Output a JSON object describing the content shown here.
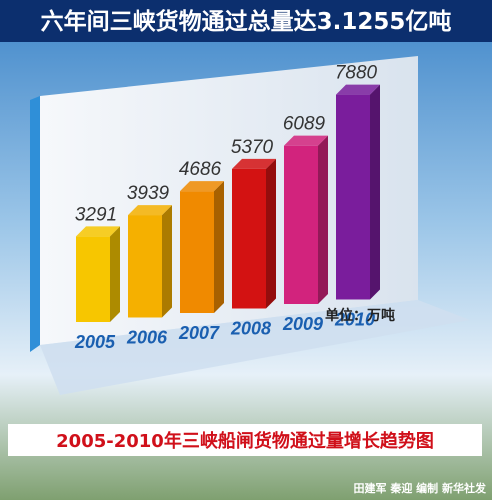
{
  "chart_data": {
    "type": "bar3d",
    "title": "六年间三峡货物通过总量达3.1255亿吨",
    "subtitle": "2005-2010年三峡船闸货物通过量增长趋势图",
    "unit": "单位：万吨",
    "credit": "田建军 秦迎 编制 新华社发",
    "categories": [
      "2005",
      "2006",
      "2007",
      "2008",
      "2009",
      "2010"
    ],
    "values": [
      3291,
      3939,
      4686,
      5370,
      6089,
      7880
    ],
    "colors": [
      "#f7c600",
      "#f5b000",
      "#f08a00",
      "#d31212",
      "#d2237d",
      "#7a1d9c"
    ]
  }
}
